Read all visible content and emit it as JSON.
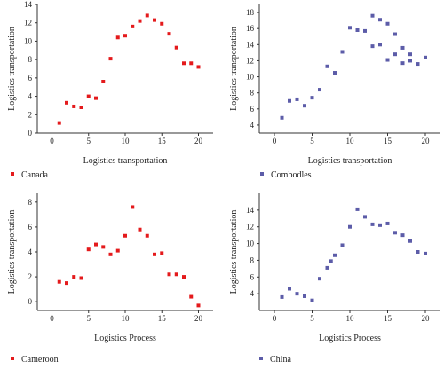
{
  "chart_data": [
    {
      "type": "scatter",
      "xlabel": "Logistics transportation",
      "ylabel": "Logistics transportation",
      "xlim": [
        -2,
        22
      ],
      "ylim": [
        0,
        14
      ],
      "xticks": [
        0,
        5,
        10,
        15,
        20
      ],
      "yticks": [
        0,
        2,
        4,
        6,
        8,
        10,
        12,
        14
      ],
      "color": "#e41a1c",
      "marker": "square",
      "series": [
        {
          "name": "Canada",
          "x": [
            1,
            2,
            3,
            4,
            5,
            6,
            7,
            8,
            9,
            10,
            11,
            12,
            13,
            14,
            15,
            16,
            17,
            18,
            19,
            20
          ],
          "y": [
            1.1,
            3.3,
            2.9,
            2.8,
            4.0,
            3.8,
            5.6,
            8.1,
            10.4,
            10.6,
            11.6,
            12.2,
            12.8,
            12.3,
            11.9,
            10.8,
            9.3,
            7.6,
            7.6,
            7.2
          ]
        }
      ],
      "legend": "bottom-left"
    },
    {
      "type": "scatter",
      "xlabel": "Logistics transportation",
      "ylabel": "Logistics transportation",
      "xlim": [
        -2,
        22
      ],
      "ylim": [
        3,
        19
      ],
      "xticks": [
        0,
        5,
        10,
        15,
        20
      ],
      "yticks": [
        4,
        6,
        8,
        10,
        12,
        14,
        16,
        18
      ],
      "color": "#5c5ca8",
      "marker": "square",
      "series": [
        {
          "name": "Combodles",
          "x": [
            1,
            2,
            3,
            4,
            5,
            6,
            7,
            8,
            9,
            10,
            11,
            12,
            13,
            13,
            14,
            14,
            15,
            15,
            16,
            16,
            17,
            17,
            18,
            18,
            19,
            20
          ],
          "y": [
            4.9,
            7.0,
            7.2,
            6.4,
            7.4,
            8.4,
            11.3,
            10.5,
            13.1,
            16.1,
            15.8,
            15.7,
            17.6,
            13.8,
            17.1,
            14.0,
            16.6,
            12.1,
            15.3,
            12.8,
            13.6,
            11.7,
            12.8,
            12.0,
            11.6,
            12.4
          ]
        }
      ],
      "legend": "bottom-left"
    },
    {
      "type": "scatter",
      "xlabel": "Logistics Process",
      "ylabel": "Logistics transportation",
      "xlim": [
        -2,
        22
      ],
      "ylim": [
        -0.7,
        8.7
      ],
      "xticks": [
        0,
        5,
        10,
        15,
        20
      ],
      "yticks": [
        0,
        2,
        4,
        6,
        8
      ],
      "color": "#e41a1c",
      "marker": "square",
      "series": [
        {
          "name": "Cameroon",
          "x": [
            1,
            2,
            3,
            4,
            5,
            6,
            7,
            8,
            9,
            10,
            11,
            12,
            13,
            14,
            15,
            16,
            17,
            18,
            19,
            20
          ],
          "y": [
            1.6,
            1.5,
            2.0,
            1.9,
            4.2,
            4.6,
            4.4,
            3.8,
            4.1,
            5.3,
            7.6,
            5.8,
            5.3,
            3.8,
            3.9,
            2.2,
            2.2,
            2.0,
            0.4,
            -0.3
          ]
        }
      ],
      "legend": "bottom-left"
    },
    {
      "type": "scatter",
      "xlabel": "Logistics Process",
      "ylabel": "Logistics transportation",
      "xlim": [
        -2,
        22
      ],
      "ylim": [
        2,
        16
      ],
      "xticks": [
        0,
        5,
        10,
        15,
        20
      ],
      "yticks": [
        4,
        6,
        8,
        10,
        12,
        14
      ],
      "color": "#5c5ca8",
      "marker": "square",
      "series": [
        {
          "name": "China",
          "x": [
            1,
            2,
            3,
            4,
            5,
            6,
            7,
            7.5,
            8,
            9,
            10,
            11,
            12,
            13,
            14,
            15,
            16,
            17,
            18,
            19,
            20
          ],
          "y": [
            3.6,
            4.6,
            4.0,
            3.7,
            3.2,
            5.8,
            7.1,
            7.9,
            8.6,
            9.8,
            12.0,
            14.1,
            13.2,
            12.3,
            12.2,
            12.4,
            11.3,
            11.0,
            10.3,
            9.0,
            8.8
          ]
        }
      ],
      "legend": "bottom-left"
    }
  ]
}
